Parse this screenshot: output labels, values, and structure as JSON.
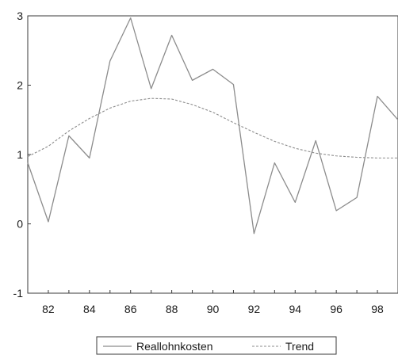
{
  "chart_data": {
    "type": "line",
    "x": [
      81,
      82,
      83,
      84,
      85,
      86,
      87,
      88,
      89,
      90,
      91,
      92,
      93,
      94,
      95,
      96,
      97,
      98,
      99
    ],
    "x_tick_labels": [
      "82",
      "84",
      "86",
      "88",
      "90",
      "92",
      "94",
      "96",
      "98"
    ],
    "x_tick_values": [
      82,
      84,
      86,
      88,
      90,
      92,
      94,
      96,
      98
    ],
    "xlim": [
      81,
      99
    ],
    "ylim": [
      -1,
      3
    ],
    "y_ticks": [
      -1,
      0,
      1,
      2,
      3
    ],
    "grid": false,
    "legend_position": "bottom",
    "series": [
      {
        "name": "Reallohnkosten",
        "style": "solid",
        "color": "#8c8c8c",
        "values": [
          0.88,
          0.03,
          1.27,
          0.95,
          2.35,
          2.97,
          1.95,
          2.72,
          2.07,
          2.23,
          2.01,
          -0.14,
          0.88,
          0.31,
          1.2,
          0.19,
          0.38,
          1.84,
          1.5
        ]
      },
      {
        "name": "Trend",
        "style": "dashed",
        "color": "#8c8c8c",
        "values": [
          0.97,
          1.12,
          1.34,
          1.52,
          1.67,
          1.77,
          1.81,
          1.8,
          1.72,
          1.61,
          1.46,
          1.32,
          1.19,
          1.09,
          1.02,
          0.98,
          0.96,
          0.95,
          0.95
        ]
      }
    ]
  }
}
